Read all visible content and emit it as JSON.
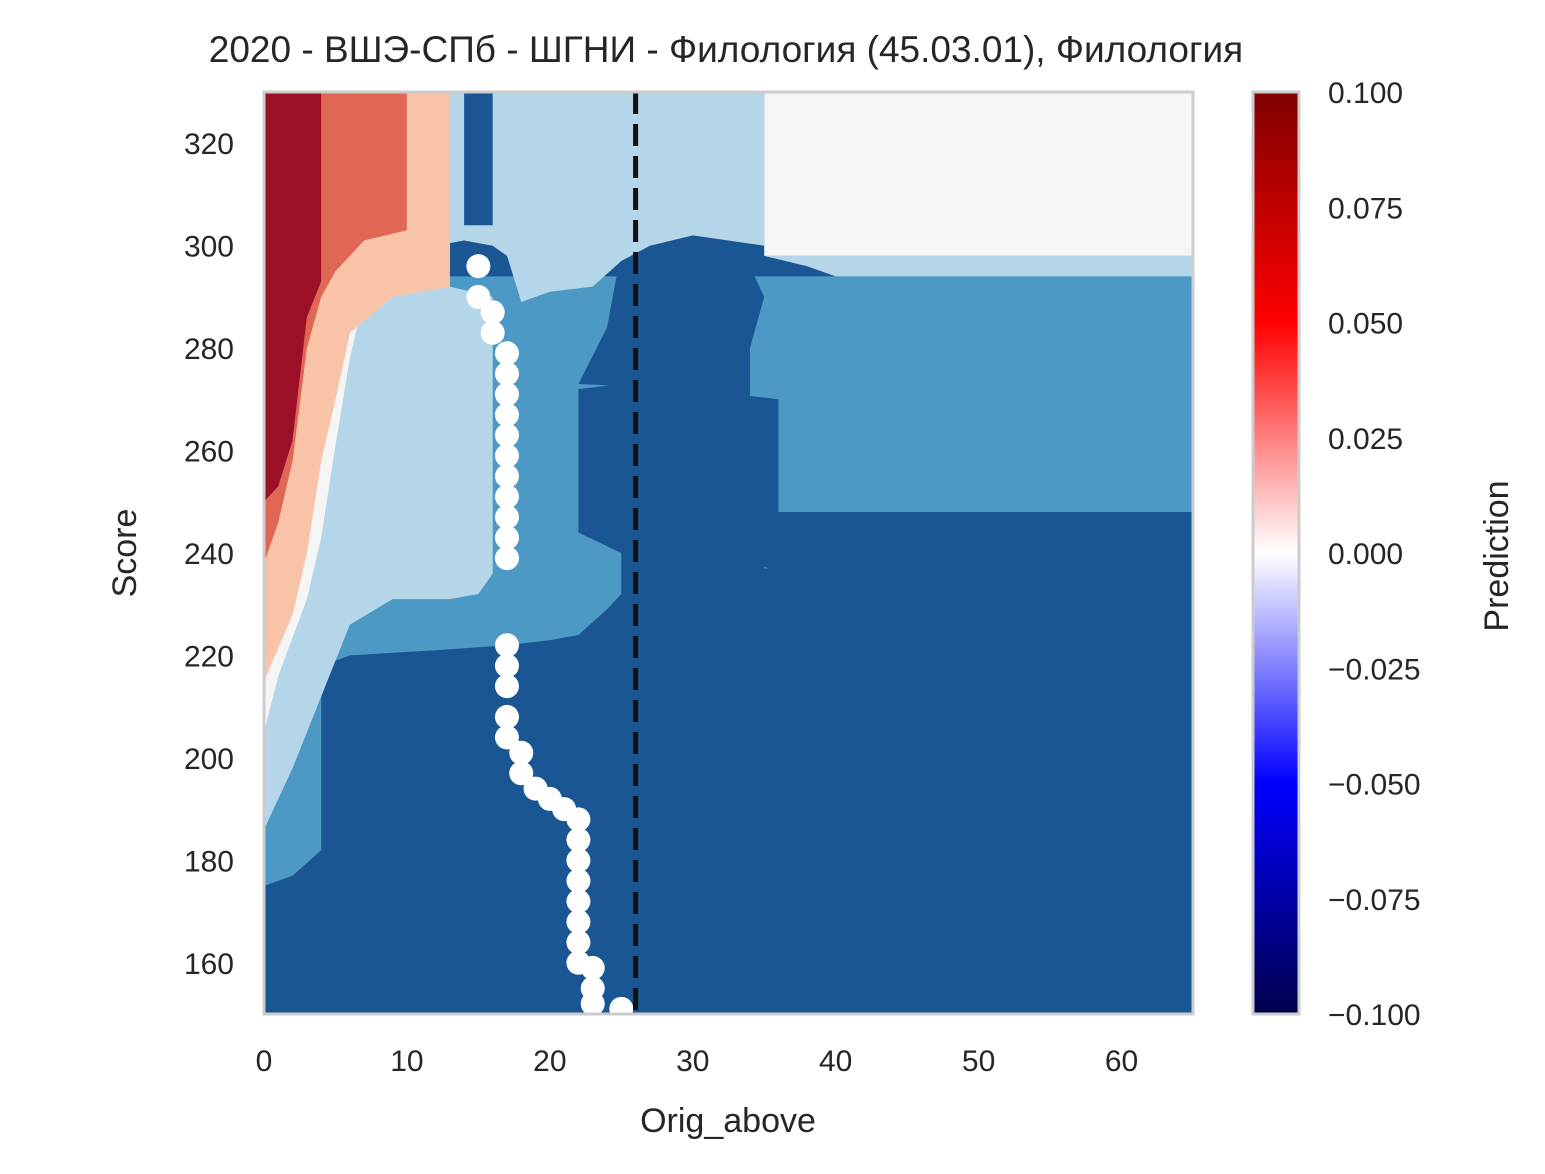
{
  "chart_data": {
    "type": "contour",
    "title": "2020 - ВШЭ-СПб - ШГНИ - Филология (45.03.01), Филология",
    "xlabel": "Orig_above",
    "ylabel": "Score",
    "xlim": [
      0,
      65
    ],
    "ylim": [
      150,
      330
    ],
    "xticks": [
      0,
      10,
      20,
      30,
      40,
      50,
      60
    ],
    "yticks": [
      160,
      180,
      200,
      220,
      240,
      260,
      280,
      300,
      320
    ],
    "grid": false,
    "colorbar": {
      "label": "Prediction",
      "range": [
        -0.1,
        0.1
      ],
      "ticks": [
        "0.100",
        "0.075",
        "0.050",
        "0.025",
        "0.000",
        "−0.025",
        "−0.050",
        "−0.075",
        "−0.100"
      ],
      "colormap": "seismic"
    },
    "regions_base": {
      "color": "#1b5694",
      "value": -0.075
    },
    "regions": [
      {
        "color": "#4c99c6",
        "polygon": [
          [
            0,
            175
          ],
          [
            2,
            177
          ],
          [
            4,
            182
          ],
          [
            4,
            218
          ],
          [
            6,
            220
          ],
          [
            12,
            221
          ],
          [
            17,
            222
          ],
          [
            20,
            223
          ],
          [
            22,
            224
          ],
          [
            24,
            229
          ],
          [
            25,
            232
          ],
          [
            25,
            240
          ],
          [
            22,
            244
          ],
          [
            22,
            272
          ],
          [
            28,
            274
          ],
          [
            30,
            273
          ],
          [
            35,
            270
          ],
          [
            35,
            237
          ],
          [
            36,
            237
          ],
          [
            36,
            248
          ],
          [
            65,
            248
          ],
          [
            65,
            294
          ],
          [
            0,
            294
          ]
        ]
      },
      {
        "color": "#1b5694",
        "polygon": [
          [
            22,
            273
          ],
          [
            24,
            284
          ],
          [
            25,
            299
          ],
          [
            28,
            300
          ],
          [
            31,
            297
          ],
          [
            34,
            296
          ],
          [
            35,
            290
          ],
          [
            34,
            280
          ],
          [
            34,
            262
          ],
          [
            34.5,
            238
          ],
          [
            36,
            236
          ],
          [
            36,
            270
          ],
          [
            30,
            272
          ]
        ]
      },
      {
        "color": "#b5d6e8",
        "polygon": [
          [
            0,
            186
          ],
          [
            2,
            198
          ],
          [
            4,
            212
          ],
          [
            6,
            226
          ],
          [
            9,
            231
          ],
          [
            13,
            231
          ],
          [
            15,
            232
          ],
          [
            16,
            236
          ],
          [
            16,
            290
          ],
          [
            13,
            292
          ],
          [
            8,
            290
          ],
          [
            5,
            282
          ],
          [
            3,
            270
          ],
          [
            1,
            260
          ],
          [
            0,
            258
          ],
          [
            0,
            330
          ],
          [
            14,
            330
          ],
          [
            14,
            304
          ],
          [
            16,
            304
          ],
          [
            16,
            330
          ],
          [
            35,
            330
          ],
          [
            35,
            300
          ],
          [
            30,
            302
          ],
          [
            27,
            300
          ],
          [
            25,
            297
          ],
          [
            23,
            292
          ],
          [
            20,
            291
          ],
          [
            18,
            289
          ],
          [
            17,
            298
          ],
          [
            16,
            300
          ],
          [
            14,
            301
          ],
          [
            12,
            300
          ],
          [
            6,
            295
          ],
          [
            4,
            286
          ],
          [
            2,
            264
          ],
          [
            0,
            260
          ]
        ]
      },
      {
        "color": "#b5d6e8",
        "polygon": [
          [
            35,
            298
          ],
          [
            65,
            298
          ],
          [
            65,
            294
          ],
          [
            40,
            294
          ],
          [
            38,
            296
          ]
        ]
      },
      {
        "color": "#f5f5f5",
        "polygon": [
          [
            35,
            330
          ],
          [
            65,
            330
          ],
          [
            65,
            298
          ],
          [
            35,
            298
          ]
        ]
      },
      {
        "color": "#f5f5f5",
        "polygon": [
          [
            0,
            205
          ],
          [
            1,
            216
          ],
          [
            3,
            231
          ],
          [
            4,
            243
          ],
          [
            5,
            261
          ],
          [
            6,
            278
          ],
          [
            7,
            290
          ],
          [
            9,
            296
          ],
          [
            12,
            301
          ],
          [
            13,
            302
          ],
          [
            13,
            292
          ],
          [
            9,
            290
          ],
          [
            6,
            283
          ],
          [
            5,
            270
          ],
          [
            4,
            258
          ],
          [
            3,
            240
          ],
          [
            2,
            228
          ],
          [
            0,
            215
          ]
        ]
      },
      {
        "color": "#f9c3a8",
        "polygon": [
          [
            0,
            215
          ],
          [
            2,
            228
          ],
          [
            3,
            240
          ],
          [
            4,
            258
          ],
          [
            5,
            270
          ],
          [
            6,
            283
          ],
          [
            9,
            290
          ],
          [
            13,
            292
          ],
          [
            13,
            330
          ],
          [
            10,
            330
          ],
          [
            10,
            303
          ],
          [
            7,
            301
          ],
          [
            5,
            295
          ],
          [
            4,
            290
          ],
          [
            3,
            280
          ],
          [
            2,
            258
          ],
          [
            1,
            246
          ],
          [
            0,
            238
          ]
        ]
      },
      {
        "color": "#e06753",
        "polygon": [
          [
            0,
            238
          ],
          [
            1,
            246
          ],
          [
            2,
            258
          ],
          [
            3,
            280
          ],
          [
            4,
            290
          ],
          [
            5,
            295
          ],
          [
            7,
            301
          ],
          [
            10,
            303
          ],
          [
            10,
            330
          ],
          [
            4,
            330
          ],
          [
            4,
            293
          ],
          [
            3,
            286
          ],
          [
            2,
            262
          ],
          [
            1,
            253
          ],
          [
            0,
            250
          ]
        ]
      },
      {
        "color": "#9b1027",
        "polygon": [
          [
            0,
            250
          ],
          [
            1,
            253
          ],
          [
            2,
            262
          ],
          [
            3,
            286
          ],
          [
            4,
            293
          ],
          [
            4,
            330
          ],
          [
            0,
            330
          ]
        ]
      }
    ],
    "white_points": [
      [
        15,
        296
      ],
      [
        15,
        290
      ],
      [
        16,
        287
      ],
      [
        16,
        283
      ],
      [
        17,
        279
      ],
      [
        17,
        275
      ],
      [
        17,
        271
      ],
      [
        17,
        267
      ],
      [
        17,
        263
      ],
      [
        17,
        259
      ],
      [
        17,
        255
      ],
      [
        17,
        251
      ],
      [
        17,
        247
      ],
      [
        17,
        243
      ],
      [
        17,
        239
      ],
      [
        17,
        222
      ],
      [
        17,
        218
      ],
      [
        17,
        214
      ],
      [
        17,
        208
      ],
      [
        17,
        204
      ],
      [
        18,
        201
      ],
      [
        18,
        197
      ],
      [
        19,
        194
      ],
      [
        20,
        192
      ],
      [
        21,
        190
      ],
      [
        22,
        188
      ],
      [
        22,
        184
      ],
      [
        22,
        180
      ],
      [
        22,
        176
      ],
      [
        22,
        172
      ],
      [
        22,
        168
      ],
      [
        22,
        164
      ],
      [
        22,
        160
      ],
      [
        23,
        159
      ],
      [
        23,
        155
      ],
      [
        23,
        152
      ],
      [
        25,
        151
      ]
    ],
    "reference_line": {
      "x": 26,
      "style": "dashed",
      "color": "#111111"
    }
  }
}
